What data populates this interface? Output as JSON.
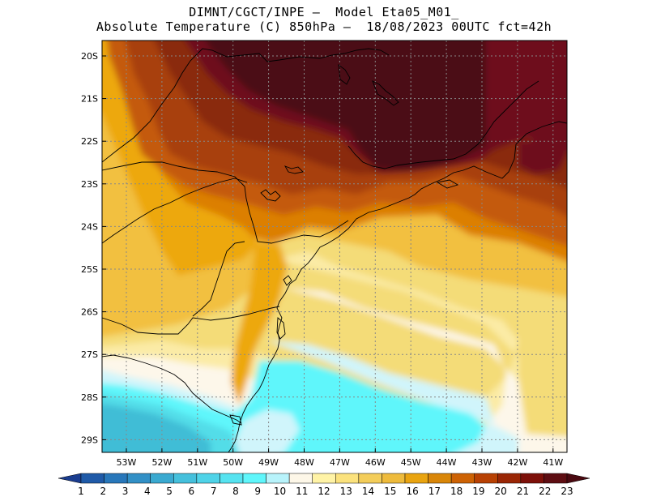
{
  "map": {
    "title_line1": "DIMNT/CGCT/INPE –  Model Eta05_M01_",
    "title_line2": "Absolute Temperature (C) 850hPa –  18/08/2023 00UTC fct=42h",
    "variable": "Absolute Temperature (C) 850hPa",
    "model": "Eta05_M01_",
    "run": "18/08/2023 00UTC",
    "forecast": "fct=42h",
    "lat_labels": [
      "20S",
      "21S",
      "22S",
      "23S",
      "24S",
      "25S",
      "26S",
      "27S",
      "28S",
      "29S"
    ],
    "lon_labels": [
      "53W",
      "52W",
      "51W",
      "50W",
      "49W",
      "48W",
      "47W",
      "46W",
      "45W",
      "44W",
      "43W",
      "42W",
      "41W"
    ],
    "colorbar": {
      "labels": [
        "1",
        "2",
        "3",
        "4",
        "5",
        "6",
        "7",
        "8",
        "9",
        "10",
        "11",
        "12",
        "13",
        "14",
        "15",
        "16",
        "17",
        "18",
        "19",
        "20",
        "21",
        "22",
        "23"
      ],
      "colors": [
        "#1a3d8f",
        "#1f5aa8",
        "#2877ba",
        "#3290c6",
        "#3aa9d0",
        "#45c0dc",
        "#4fd3e8",
        "#56e3f0",
        "#5ff6fb",
        "#b8f3fb",
        "#fdf7e8",
        "#fff3a6",
        "#fbe27d",
        "#f3cd5a",
        "#eebb3c",
        "#e9a410",
        "#d98608",
        "#cd6204",
        "#b84103",
        "#9a2605",
        "#7d1009",
        "#5e0d12",
        "#4a0910"
      ]
    },
    "palette": {
      "deep_maroon": "#4c0f14",
      "maroon": "#6e111b",
      "dark_brown": "#8a2a0a",
      "brown": "#a8410a",
      "red_orange": "#c45a0a",
      "orange": "#dc7f06",
      "dark_yellow": "#eda80c",
      "golden": "#f2c040",
      "yellow": "#f4dc78",
      "pale_yellow": "#fbeba6",
      "cream": "#fdf7ea",
      "light_cyan": "#d0f5fb",
      "cyan": "#5ff6fb",
      "aqua": "#52dde8",
      "teal": "#40bdd6"
    }
  }
}
